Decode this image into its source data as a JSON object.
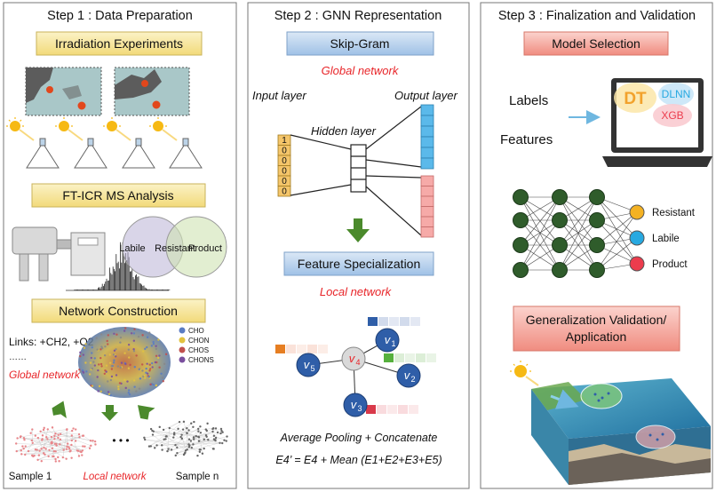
{
  "step1": {
    "title": "Step 1 : Data Preparation",
    "box_irradiation": "Irradiation Experiments",
    "box_ftms": "FT-ICR MS Analysis",
    "venn": [
      "Labile",
      "Resistant",
      "Product"
    ],
    "box_network": "Network Construction",
    "links": "Links: +CH2, +O2",
    "ellipsis_dots": "……",
    "global_network": "Global network",
    "legend": [
      "CHO",
      "CHON",
      "CHOS",
      "CHONS"
    ],
    "sample_1": "Sample 1",
    "local_network": "Local network",
    "sample_n": "Sample n",
    "dots": "• • •"
  },
  "step2": {
    "title": "Step 2 : GNN Representation",
    "box_skipgram": "Skip-Gram",
    "global_network": "Global network",
    "input_layer": "Input layer",
    "hidden_layer": "Hidden layer",
    "output_layer": "Output layer",
    "onehot": [
      "1",
      "0",
      "0",
      "0",
      "0",
      "0"
    ],
    "box_feature": "Feature Specialization",
    "local_network": "Local network",
    "nodes": [
      {
        "label": "v",
        "sub": "1"
      },
      {
        "label": "v",
        "sub": "2"
      },
      {
        "label": "v",
        "sub": "3"
      },
      {
        "label": "v",
        "sub": "4"
      },
      {
        "label": "v",
        "sub": "5"
      }
    ],
    "pooling": "Average Pooling + Concatenate",
    "equation": "E4’ = E4 + Mean (E1+E2+E3+E5)"
  },
  "step3": {
    "title": "Step 3 : Finalization and Validation",
    "box_model": "Model Selection",
    "labels": "Labels",
    "features": "Features",
    "models": [
      "DT",
      "DLNN",
      "XGB"
    ],
    "classes": [
      "Resistant",
      "Labile",
      "Product"
    ],
    "box_general_1": "Generalization Validation/",
    "box_general_2": "Application"
  },
  "colors": {
    "yellow_box": "#f7e7a3",
    "blue_box": "#b9d3ec",
    "red_box": "#f4a59c",
    "red_text": "#e8262a",
    "node_blue": "#2f5ea8",
    "nn_green": "#2f5c2b",
    "resistant": "#f4b223",
    "labile": "#27a9e1",
    "product": "#ec3c4d"
  }
}
